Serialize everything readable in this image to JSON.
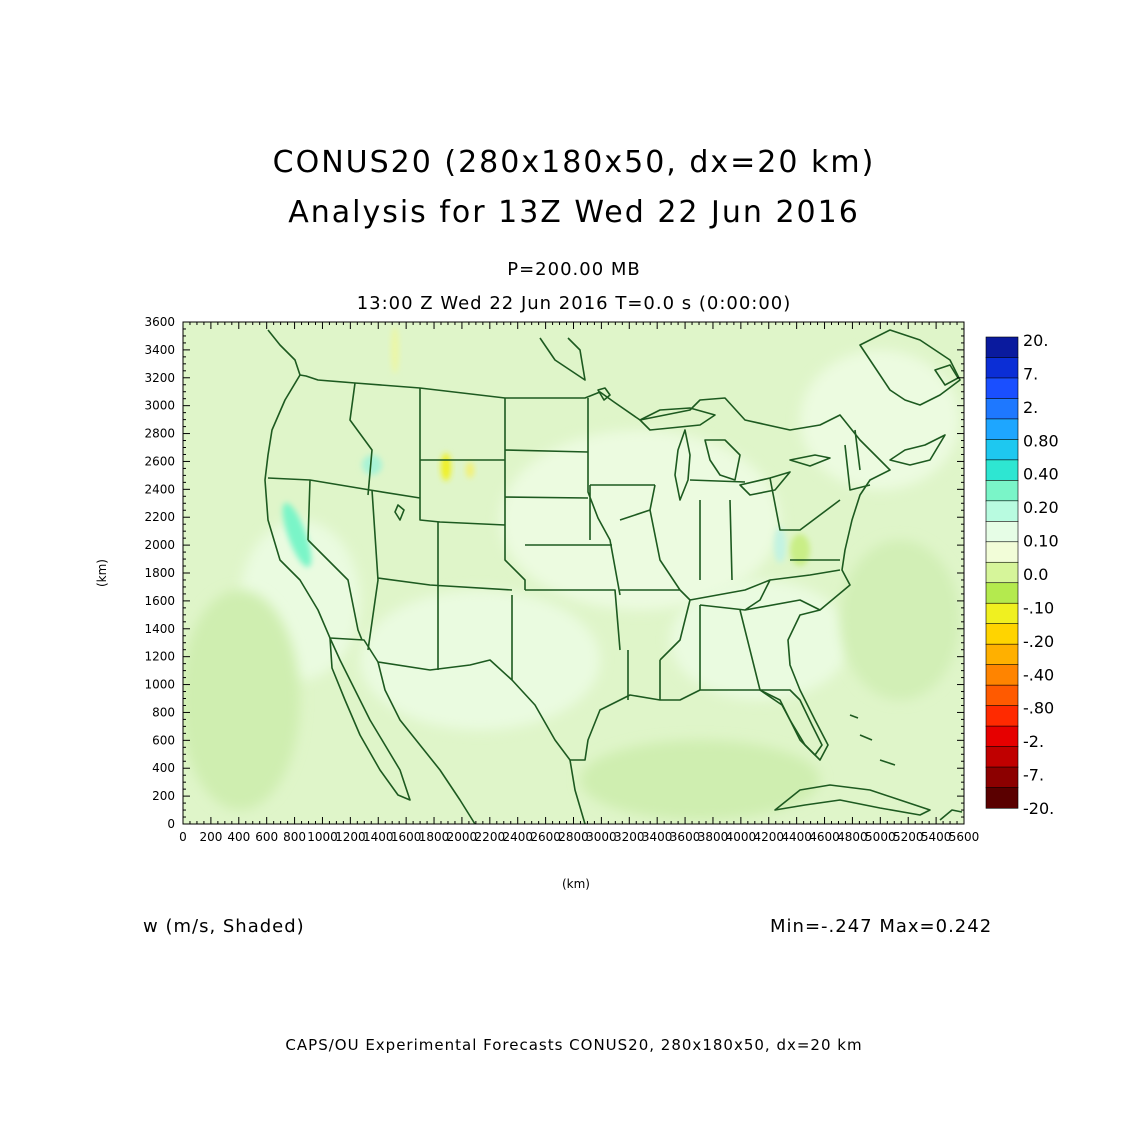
{
  "titles": {
    "line1": "CONUS20 (280x180x50, dx=20 km)",
    "line2": "Analysis for 13Z Wed 22 Jun 2016",
    "level": "P=200.00 MB",
    "time": "13:00 Z Wed 22 Jun 2016    T=0.0 s (0:00:00)"
  },
  "field": {
    "label": "w (m/s, Shaded)",
    "minmax": "Min=-.247  Max=0.242"
  },
  "footer": "CAPS/OU Experimental Forecasts  CONUS20, 280x180x50, dx=20 km",
  "axes": {
    "x_label": "(km)",
    "y_label": "(km)",
    "x_range": [
      0,
      5600
    ],
    "y_range": [
      0,
      3600
    ],
    "x_ticks": [
      "0",
      "200",
      "400",
      "600",
      "800",
      "1000",
      "1200",
      "1400",
      "1600",
      "1800",
      "2000",
      "2200",
      "2400",
      "2600",
      "2800",
      "3000",
      "3200",
      "3400",
      "3600",
      "3800",
      "4000",
      "4200",
      "4400",
      "4600",
      "4800",
      "5000",
      "5200",
      "5400",
      "5600"
    ],
    "y_ticks": [
      "0",
      "200",
      "400",
      "600",
      "800",
      "1000",
      "1200",
      "1400",
      "1600",
      "1800",
      "2000",
      "2200",
      "2400",
      "2600",
      "2800",
      "3000",
      "3200",
      "3400",
      "3600"
    ]
  },
  "colorbar": {
    "labels": [
      "20.",
      "7.",
      "2.",
      "0.80",
      "0.40",
      "0.20",
      "0.10",
      "0.0",
      "-.10",
      "-.20",
      "-.40",
      "-.80",
      "-2.",
      "-7.",
      "-20."
    ],
    "colors": [
      "#0a1a9e",
      "#0b2ed6",
      "#1a4fff",
      "#1e78ff",
      "#1ea6ff",
      "#1ec8f0",
      "#2ee6d2",
      "#7af5c8",
      "#b8fbe0",
      "#e6fde6",
      "#f2fdd8",
      "#d6f59a",
      "#b4ea4e",
      "#f0f020",
      "#ffd400",
      "#ffb000",
      "#ff8400",
      "#ff5a00",
      "#ff2a00",
      "#e60000",
      "#c00000",
      "#8c0000",
      "#5a0000"
    ]
  },
  "map": {
    "background_color": "#dff5c9",
    "boundary_color": "#1d5a20",
    "features": [
      {
        "name": "Sierra Nevada updraft",
        "x_km": 850,
        "y_km": 2150,
        "color": "#7af5c8"
      },
      {
        "name": "Wyoming downdraft",
        "x_km": 1900,
        "y_km": 2550,
        "color": "#f0f020"
      },
      {
        "name": "Virginia downdraft",
        "x_km": 4450,
        "y_km": 1900,
        "color": "#b4ea4e"
      }
    ]
  }
}
